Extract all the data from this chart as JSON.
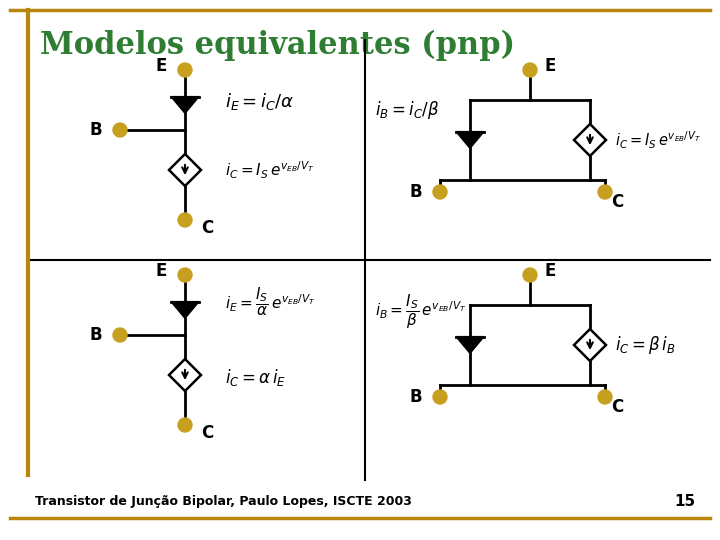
{
  "title": "Modelos equivalentes (pnp)",
  "title_color": "#2E7D32",
  "title_fontsize": 22,
  "bg_color": "#FFFFFF",
  "border_color": "#B8860B",
  "node_color": "#C8A020",
  "line_color": "#000000",
  "footer_text": "Transistor de Junção Bipolar, Paulo Lopes, ISCTE 2003",
  "page_number": "15"
}
